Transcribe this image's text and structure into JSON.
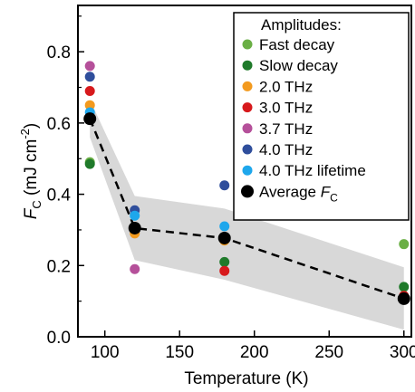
{
  "chart_data": {
    "type": "scatter",
    "xlabel": "Temperature (K)",
    "ylabel": {
      "main": "F",
      "sub": "C",
      "units": "(mJ cm",
      "exp": "-2",
      "close": ")"
    },
    "xlim": [
      82,
      305
    ],
    "ylim": [
      0.0,
      0.93
    ],
    "xticks": [
      100,
      150,
      200,
      250,
      300
    ],
    "yticks": [
      0.0,
      0.2,
      0.4,
      0.6,
      0.8
    ],
    "ytick_labels": [
      "0.0",
      "0.2",
      "0.4",
      "0.6",
      "0.8"
    ],
    "grid": false,
    "legend": {
      "title": "Amplitudes:",
      "placement": "top-right",
      "average_label": {
        "main": "Average ",
        "italic": "F",
        "sub": "C"
      }
    },
    "series": [
      {
        "name": "Fast decay",
        "color": "#6aaf45",
        "points": [
          [
            90,
            0.49
          ],
          [
            300,
            0.26
          ]
        ]
      },
      {
        "name": "Slow decay",
        "color": "#1f7a2a",
        "points": [
          [
            90,
            0.485
          ],
          [
            180,
            0.21
          ],
          [
            300,
            0.14
          ]
        ]
      },
      {
        "name": "2.0 THz",
        "color": "#f39a1e",
        "points": [
          [
            90,
            0.65
          ],
          [
            120,
            0.29
          ],
          [
            180,
            0.27
          ]
        ]
      },
      {
        "name": "3.0 THz",
        "color": "#d7191c",
        "points": [
          [
            90,
            0.69
          ],
          [
            180,
            0.185
          ],
          [
            300,
            0.115
          ]
        ]
      },
      {
        "name": "3.7 THz",
        "color": "#b5509a",
        "points": [
          [
            90,
            0.76
          ],
          [
            120,
            0.19
          ]
        ]
      },
      {
        "name": "4.0 THz",
        "color": "#2f4e9c",
        "points": [
          [
            90,
            0.73
          ],
          [
            120,
            0.355
          ],
          [
            180,
            0.425
          ]
        ]
      },
      {
        "name": "4.0 THz lifetime",
        "color": "#1ea7ec",
        "points": [
          [
            90,
            0.63
          ],
          [
            120,
            0.34
          ],
          [
            180,
            0.31
          ]
        ]
      }
    ],
    "average": {
      "name": "Average F_C",
      "color": "#000000",
      "x": [
        90,
        120,
        180,
        300
      ],
      "y": [
        0.612,
        0.305,
        0.277,
        0.107
      ],
      "band_low": [
        0.56,
        0.215,
        0.16,
        0.02
      ],
      "band_high": [
        0.665,
        0.395,
        0.36,
        0.195
      ],
      "band_color": "#d8d8d8"
    }
  }
}
